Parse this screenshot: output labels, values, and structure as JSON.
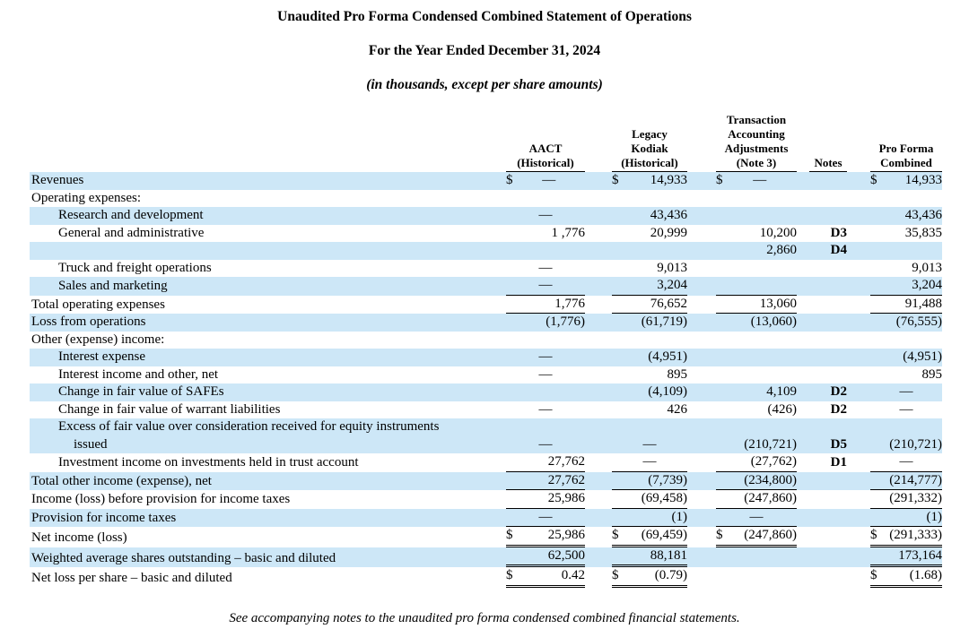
{
  "page": {
    "title1": "Unaudited Pro Forma Condensed Combined Statement of Operations",
    "title2": "For the Year Ended December 31, 2024",
    "title3": "(in thousands, except per share amounts)",
    "footnote": "See accompanying notes to the unaudited pro forma condensed combined financial statements."
  },
  "colors": {
    "stripe": "#cde7f7",
    "text": "#000000",
    "rule": "#000000"
  },
  "table": {
    "columns": [
      {
        "key": "aact",
        "header": "AACT\n(Historical)"
      },
      {
        "key": "kodiak",
        "header": "Legacy\nKodiak\n(Historical)"
      },
      {
        "key": "adj",
        "header": "Transaction\nAccounting\nAdjustments\n(Note 3)"
      },
      {
        "key": "notes",
        "header": "Notes"
      },
      {
        "key": "pf",
        "header": "Pro Forma\nCombined"
      }
    ],
    "rows": [
      {
        "label": "Revenues",
        "indent": 0,
        "stripe": true,
        "cells": {
          "aact": {
            "d": "$",
            "v": "—"
          },
          "kodiak": {
            "d": "$",
            "v": "14,933"
          },
          "adj": {
            "d": "$",
            "v": "—"
          },
          "notes": "",
          "pf": {
            "d": "$",
            "v": "14,933"
          }
        }
      },
      {
        "label": "Operating expenses:",
        "indent": 0,
        "stripe": false,
        "cells": {
          "aact": {},
          "kodiak": {},
          "adj": {},
          "notes": "",
          "pf": {}
        }
      },
      {
        "label": "Research and development",
        "indent": 1,
        "stripe": true,
        "cells": {
          "aact": {
            "v": "—"
          },
          "kodiak": {
            "v": "43,436"
          },
          "adj": {},
          "notes": "",
          "pf": {
            "v": "43,436"
          }
        }
      },
      {
        "label": "General and administrative",
        "indent": 1,
        "stripe": false,
        "cells": {
          "aact": {
            "v": "1 ,776"
          },
          "kodiak": {
            "v": "20,999"
          },
          "adj": {
            "v": "10,200"
          },
          "notes": "D3",
          "pf": {
            "v": "35,835"
          }
        }
      },
      {
        "label": "",
        "indent": 1,
        "stripe": true,
        "cells": {
          "aact": {},
          "kodiak": {},
          "adj": {
            "v": "2,860"
          },
          "notes": "D4",
          "pf": {}
        }
      },
      {
        "label": "Truck and freight operations",
        "indent": 1,
        "stripe": false,
        "cells": {
          "aact": {
            "v": "—"
          },
          "kodiak": {
            "v": "9,013"
          },
          "adj": {},
          "notes": "",
          "pf": {
            "v": "9,013"
          }
        }
      },
      {
        "label": "Sales and marketing",
        "indent": 1,
        "stripe": true,
        "cells": {
          "aact": {
            "v": "—",
            "u": 1
          },
          "kodiak": {
            "v": "3,204",
            "u": 1
          },
          "adj": {
            "v": "",
            "u": 1
          },
          "notes": "",
          "pf": {
            "v": "3,204",
            "u": 1
          }
        }
      },
      {
        "label": "Total operating expenses",
        "indent": 0,
        "stripe": false,
        "cells": {
          "aact": {
            "v": "1,776",
            "u": 1
          },
          "kodiak": {
            "v": "76,652",
            "u": 1
          },
          "adj": {
            "v": "13,060",
            "u": 1
          },
          "notes": "",
          "pf": {
            "v": "91,488",
            "u": 1
          }
        }
      },
      {
        "label": "Loss from operations",
        "indent": 0,
        "stripe": true,
        "cells": {
          "aact": {
            "v": "(1,776)"
          },
          "kodiak": {
            "v": "(61,719)"
          },
          "adj": {
            "v": "(13,060)"
          },
          "notes": "",
          "pf": {
            "v": "(76,555)"
          }
        }
      },
      {
        "label": "Other (expense) income:",
        "indent": 0,
        "stripe": false,
        "cells": {
          "aact": {},
          "kodiak": {},
          "adj": {},
          "notes": "",
          "pf": {}
        }
      },
      {
        "label": "Interest expense",
        "indent": 1,
        "stripe": true,
        "cells": {
          "aact": {
            "v": "—"
          },
          "kodiak": {
            "v": "(4,951)"
          },
          "adj": {},
          "notes": "",
          "pf": {
            "v": "(4,951)"
          }
        }
      },
      {
        "label": "Interest income and other, net",
        "indent": 1,
        "stripe": false,
        "cells": {
          "aact": {
            "v": "—"
          },
          "kodiak": {
            "v": "895"
          },
          "adj": {},
          "notes": "",
          "pf": {
            "v": "895"
          }
        }
      },
      {
        "label": "Change in fair value of SAFEs",
        "indent": 1,
        "stripe": true,
        "cells": {
          "aact": {},
          "kodiak": {
            "v": "(4,109)"
          },
          "adj": {
            "v": "4,109"
          },
          "notes": "D2",
          "pf": {
            "v": "—"
          }
        }
      },
      {
        "label": "Change in fair value of warrant liabilities",
        "indent": 1,
        "stripe": false,
        "cells": {
          "aact": {
            "v": "—"
          },
          "kodiak": {
            "v": "426"
          },
          "adj": {
            "v": "(426)"
          },
          "notes": "D2",
          "pf": {
            "v": "—"
          }
        }
      },
      {
        "label": "Excess of fair value over consideration received for equity instruments",
        "label2": "issued",
        "indent": 1,
        "stripe": true,
        "cells": {
          "aact": {
            "v": "—"
          },
          "kodiak": {
            "v": "—"
          },
          "adj": {
            "v": "(210,721)"
          },
          "notes": "D5",
          "pf": {
            "v": "(210,721)"
          }
        }
      },
      {
        "label": "Investment income on investments held in trust account",
        "indent": 1,
        "stripe": false,
        "cells": {
          "aact": {
            "v": "27,762",
            "u": 1
          },
          "kodiak": {
            "v": "—",
            "u": 1
          },
          "adj": {
            "v": "(27,762)",
            "u": 1
          },
          "notes": "D1",
          "pf": {
            "v": "—",
            "u": 1
          }
        }
      },
      {
        "label": "Total other income (expense), net",
        "indent": 0,
        "stripe": true,
        "cells": {
          "aact": {
            "v": "27,762",
            "u": 1
          },
          "kodiak": {
            "v": "(7,739)",
            "u": 1
          },
          "adj": {
            "v": "(234,800)",
            "u": 1
          },
          "notes": "",
          "pf": {
            "v": "(214,777)",
            "u": 1
          }
        }
      },
      {
        "label": "Income (loss) before provision for income taxes",
        "indent": 0,
        "stripe": false,
        "cells": {
          "aact": {
            "v": "25,986",
            "u": 1
          },
          "kodiak": {
            "v": "(69,458)",
            "u": 1
          },
          "adj": {
            "v": "(247,860)",
            "u": 1
          },
          "notes": "",
          "pf": {
            "v": "(291,332)",
            "u": 1
          }
        }
      },
      {
        "label": "Provision for income taxes",
        "indent": 0,
        "stripe": true,
        "cells": {
          "aact": {
            "v": "—",
            "u": 1
          },
          "kodiak": {
            "v": "(1)",
            "u": 1
          },
          "adj": {
            "v": "—",
            "u": 1
          },
          "notes": "",
          "pf": {
            "v": "(1)",
            "u": 1
          }
        }
      },
      {
        "label": "Net income (loss)",
        "indent": 0,
        "stripe": false,
        "cells": {
          "aact": {
            "d": "$",
            "v": "25,986",
            "u": 2
          },
          "kodiak": {
            "d": "$",
            "v": "(69,459)",
            "u": 2
          },
          "adj": {
            "d": "$",
            "v": "(247,860)",
            "u": 2
          },
          "notes": "",
          "pf": {
            "d": "$",
            "v": "(291,333)",
            "u": 2
          }
        }
      },
      {
        "label": "Weighted average shares outstanding – basic and diluted",
        "indent": 0,
        "stripe": true,
        "cells": {
          "aact": {
            "v": "62,500",
            "u": 2
          },
          "kodiak": {
            "v": "88,181",
            "u": 2
          },
          "adj": {},
          "notes": "",
          "pf": {
            "v": "173,164",
            "u": 2
          }
        }
      },
      {
        "label": "Net loss per share – basic and diluted",
        "indent": 0,
        "stripe": false,
        "cells": {
          "aact": {
            "d": "$",
            "v": "0.42",
            "u": 2
          },
          "kodiak": {
            "d": "$",
            "v": "(0.79)",
            "u": 2
          },
          "adj": {},
          "notes": "",
          "pf": {
            "d": "$",
            "v": "(1.68)",
            "u": 2
          }
        }
      }
    ]
  }
}
